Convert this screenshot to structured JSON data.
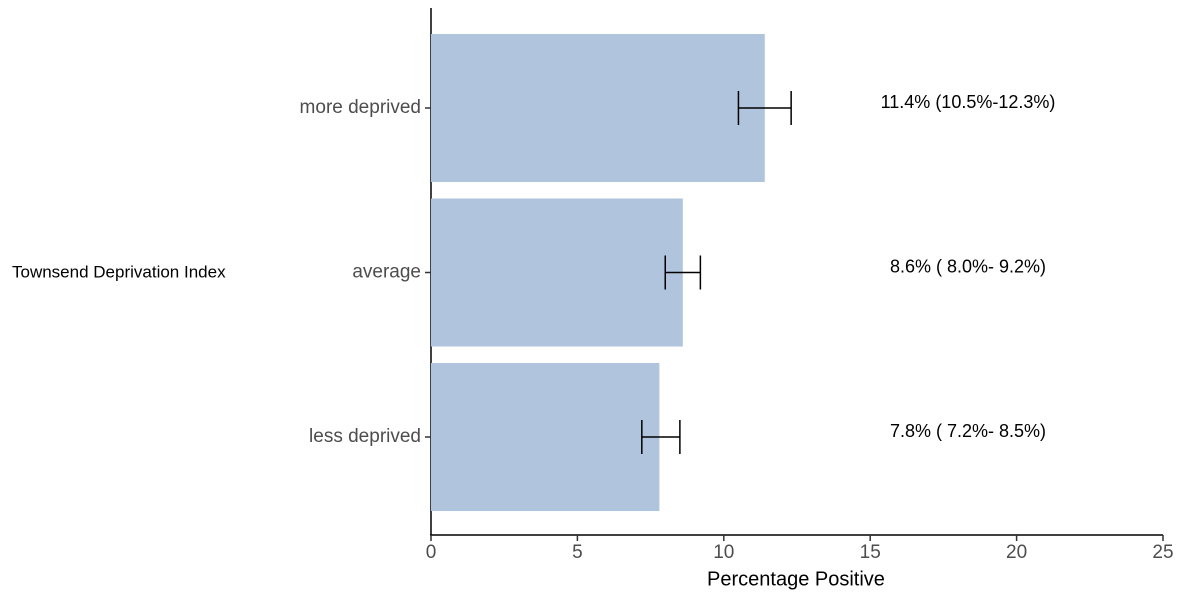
{
  "chart_data": {
    "type": "hbar",
    "y_label": "Townsend Deprivation Index",
    "x_label": "Percentage Positive",
    "categories": [
      "more deprived",
      "average",
      "less deprived"
    ],
    "series": [
      {
        "name": "Percentage Positive",
        "color": "#b0c4de",
        "values": [
          11.4,
          8.6,
          7.8
        ],
        "lower": [
          10.5,
          8.0,
          7.2
        ],
        "upper": [
          12.3,
          9.2,
          8.5
        ],
        "value_labels": [
          "11.4% (10.5%-12.3%)",
          "8.6% ( 8.0%- 9.2%)",
          "7.8% ( 7.2%- 8.5%)"
        ]
      }
    ],
    "xlim": [
      0,
      25
    ],
    "xticks": [
      0,
      5,
      10,
      15,
      20,
      25
    ],
    "grid": false
  }
}
